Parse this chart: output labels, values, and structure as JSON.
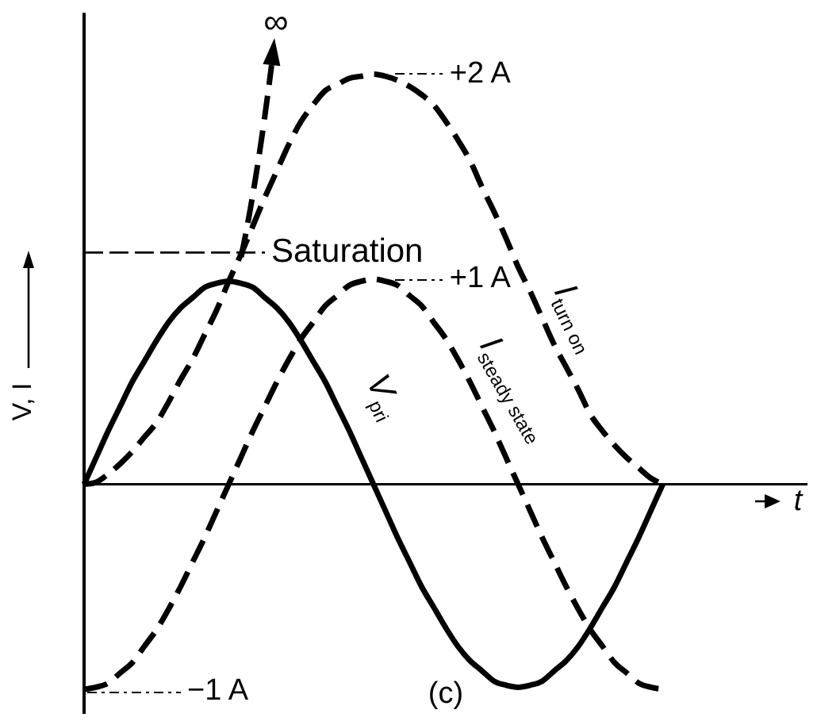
{
  "chart_data": {
    "type": "line",
    "xlabel": "t",
    "ylabel": "V, I",
    "categories": [
      null,
      null,
      null,
      null,
      null,
      null,
      null,
      null,
      null,
      null,
      null,
      null,
      null,
      null,
      null,
      null,
      null,
      null,
      null,
      null,
      null,
      null,
      null,
      null,
      null,
      null,
      null,
      null,
      null,
      null,
      null,
      null,
      null,
      null,
      null,
      null,
      null,
      null,
      null,
      null,
      null,
      null,
      null,
      null,
      null,
      null,
      null,
      null,
      null,
      null,
      null,
      null,
      null,
      null,
      null,
      null,
      null,
      null,
      null,
      null,
      null
    ],
    "series": [
      {
        "name": "V$_{pri}$",
        "color": "#000000",
        "line_style": "solid",
        "values": [
          0,
          0.13,
          0.26,
          0.38,
          0.5,
          0.6,
          0.7,
          0.79,
          0.86,
          0.91,
          0.96,
          0.98,
          0.99,
          0.98,
          0.96,
          0.91,
          0.86,
          0.79,
          0.7,
          0.6,
          0.5,
          0.38,
          0.26,
          0.13,
          0,
          -0.13,
          -0.26,
          -0.38,
          -0.5,
          -0.6,
          -0.7,
          -0.79,
          -0.86,
          -0.91,
          -0.96,
          -0.98,
          -0.99,
          -0.98,
          -0.96,
          -0.91,
          -0.86,
          -0.79,
          -0.7,
          -0.6,
          -0.5,
          -0.38,
          -0.26,
          -0.13,
          0,
          null,
          null,
          null,
          null,
          null,
          null,
          null,
          null,
          null,
          null,
          null,
          null
        ]
      },
      {
        "name": "I$_{turn on}$",
        "color": "#000000",
        "line_style": "dashed",
        "values": [
          0,
          0.01,
          0.05,
          0.1,
          0.16,
          0.23,
          0.3,
          0.4,
          0.51,
          0.61,
          0.73,
          0.85,
          0.99,
          1.12,
          1.26,
          1.4,
          1.53,
          1.66,
          1.77,
          1.85,
          1.92,
          1.95,
          1.98,
          1.99,
          2,
          1.99,
          1.97,
          1.94,
          1.9,
          1.85,
          1.77,
          1.68,
          1.58,
          1.45,
          1.33,
          1.2,
          1.06,
          0.94,
          0.81,
          0.68,
          0.57,
          0.46,
          0.34,
          0.26,
          0.19,
          0.13,
          0.08,
          0.03,
          0,
          null,
          null,
          null,
          null,
          null,
          null,
          null,
          null,
          null,
          null,
          null,
          null
        ]
      },
      {
        "name": "I$_{steady state}$",
        "color": "#000000",
        "line_style": "dashed",
        "values": [
          -1,
          -0.99,
          -0.97,
          -0.92,
          -0.87,
          -0.79,
          -0.71,
          -0.61,
          -0.5,
          -0.38,
          -0.26,
          -0.13,
          0,
          0.13,
          0.26,
          0.38,
          0.5,
          0.61,
          0.71,
          0.79,
          0.87,
          0.92,
          0.97,
          0.99,
          1,
          0.99,
          0.97,
          0.92,
          0.87,
          0.79,
          0.71,
          0.61,
          0.5,
          0.38,
          0.26,
          0.13,
          0,
          -0.13,
          -0.26,
          -0.38,
          -0.5,
          -0.61,
          -0.71,
          -0.79,
          -0.87,
          -0.92,
          -0.97,
          -0.99,
          -1,
          null,
          null,
          null,
          null,
          null,
          null,
          null,
          null,
          null,
          null,
          null,
          null
        ]
      }
    ],
    "ylim": [
      -1.12,
      2.3
    ],
    "yticks": [
      {
        "value": 2,
        "label": "+2 A"
      },
      {
        "value": 1,
        "label": "+1 A"
      }
    ],
    "tick_labels": "y",
    "ref_lines": [
      {
        "axis": "y",
        "value": 1.13,
        "label": "Saturation",
        "color": "#000000",
        "line_style": "dashed"
      }
    ],
    "annotations": [
      "∞",
      "−1 A",
      "(c)"
    ]
  }
}
